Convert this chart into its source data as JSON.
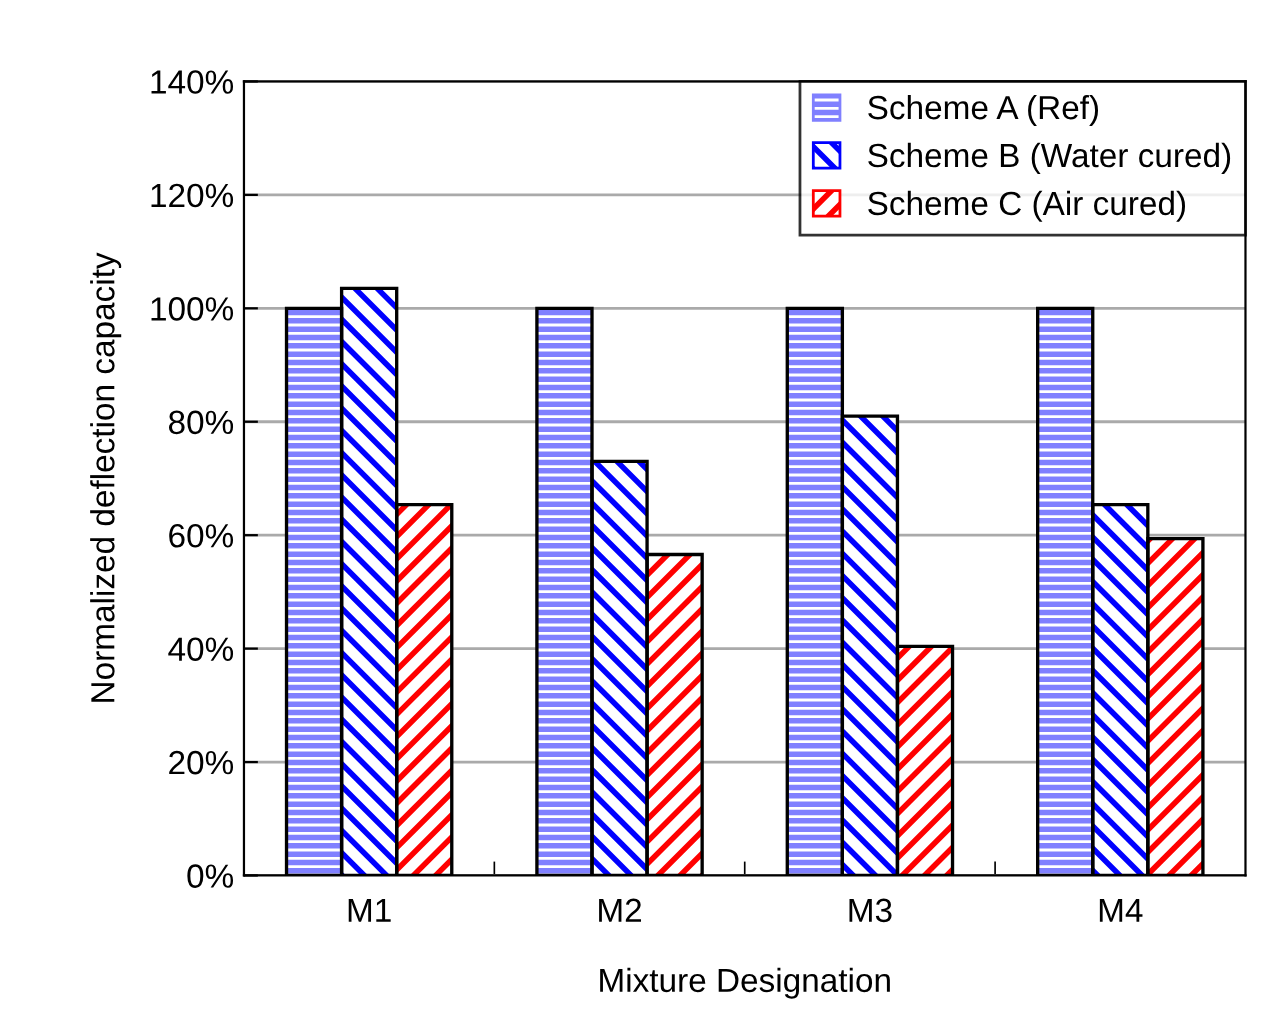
{
  "chart_data": {
    "type": "bar",
    "xlabel": "Mixture Designation",
    "ylabel": "Normalized deflection capacity",
    "categories": [
      "M1",
      "M2",
      "M3",
      "M4"
    ],
    "series": [
      {
        "name": "Scheme A (Ref)",
        "color": "#8080ff",
        "values": [
          100,
          100,
          100,
          100
        ]
      },
      {
        "name": "Scheme B (Water cured)",
        "color": "#0000ff",
        "values": [
          103.5,
          73,
          81,
          65.4
        ]
      },
      {
        "name": "Scheme C (Air cured)",
        "color": "#ff0000",
        "values": [
          65.4,
          56.6,
          40.4,
          59.4
        ]
      }
    ],
    "ylim": [
      0,
      140
    ],
    "yticks": [
      {
        "value": 0,
        "label": "0%"
      },
      {
        "value": 20,
        "label": "20%"
      },
      {
        "value": 40,
        "label": "40%"
      },
      {
        "value": 60,
        "label": "60%"
      },
      {
        "value": 80,
        "label": "80%"
      },
      {
        "value": 100,
        "label": "100%"
      },
      {
        "value": 120,
        "label": "120%"
      },
      {
        "value": 140,
        "label": "140%"
      }
    ],
    "grid": "y",
    "legend": "top right"
  }
}
